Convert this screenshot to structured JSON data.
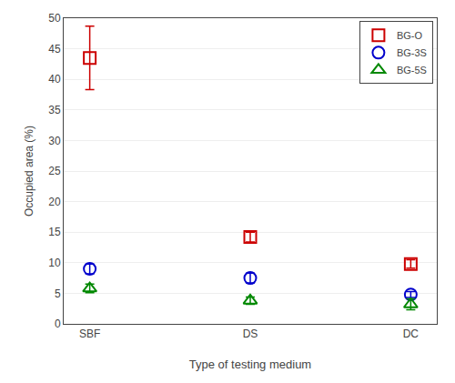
{
  "chart_data": {
    "type": "scatter",
    "categories": [
      "SBF",
      "DS",
      "DC"
    ],
    "series": [
      {
        "name": "BG-O",
        "color": "#cc0000",
        "marker": "square",
        "values": [
          43.5,
          14.2,
          9.8
        ],
        "yerr": [
          5.2,
          0.8,
          0.7
        ]
      },
      {
        "name": "BG-3S",
        "color": "#0000cc",
        "marker": "circle",
        "values": [
          9.0,
          7.5,
          4.8
        ],
        "yerr": [
          0.8,
          0.8,
          0.5
        ]
      },
      {
        "name": "BG-5S",
        "color": "#008800",
        "marker": "triangle-up",
        "values": [
          5.8,
          3.8,
          3.2
        ],
        "yerr": [
          0.7,
          0.6,
          0.9
        ]
      }
    ],
    "xlabel": "Type of testing medium",
    "ylabel": "Occupied area (%)",
    "ylim": [
      0,
      50
    ],
    "yticks": [
      0,
      5,
      10,
      15,
      20,
      25,
      30,
      35,
      40,
      45,
      50
    ],
    "grid": true,
    "legend": "upper right"
  }
}
